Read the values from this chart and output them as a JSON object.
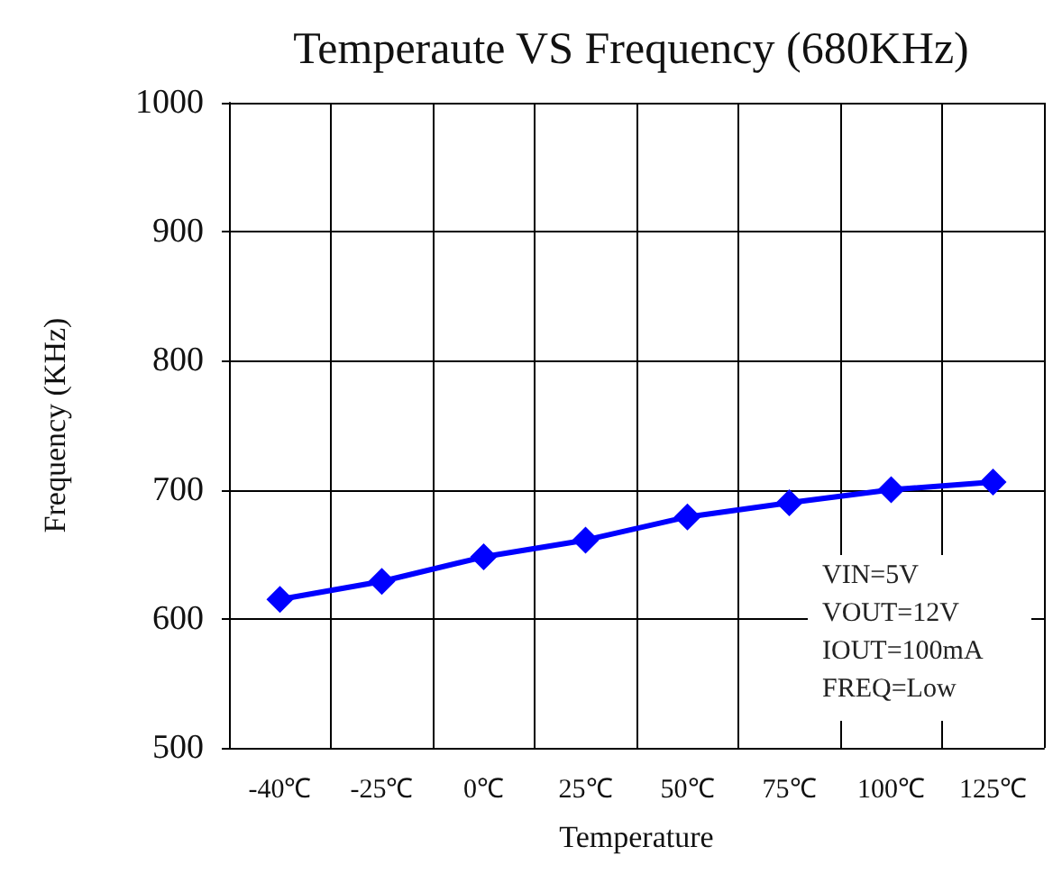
{
  "chart_data": {
    "type": "line",
    "title": "Temperaute VS Frequency (680KHz)",
    "xlabel": "Temperature",
    "ylabel": "Frequency (KHz)",
    "categories": [
      "-40℃",
      "-25℃",
      "0℃",
      "25℃",
      "50℃",
      "75℃",
      "100℃",
      "125℃"
    ],
    "series": [
      {
        "color": "#0000ff",
        "values": [
          615,
          629,
          648,
          661,
          679,
          690,
          700,
          706
        ]
      }
    ],
    "ylim": [
      500,
      1000
    ],
    "yticks": [
      500,
      600,
      700,
      800,
      900,
      1000
    ],
    "grid": true,
    "marker": "diamond",
    "line_style": "solid",
    "annotations": [
      "VIN=5V",
      "VOUT=12V",
      "IOUT=100mA",
      "FREQ=Low"
    ]
  }
}
